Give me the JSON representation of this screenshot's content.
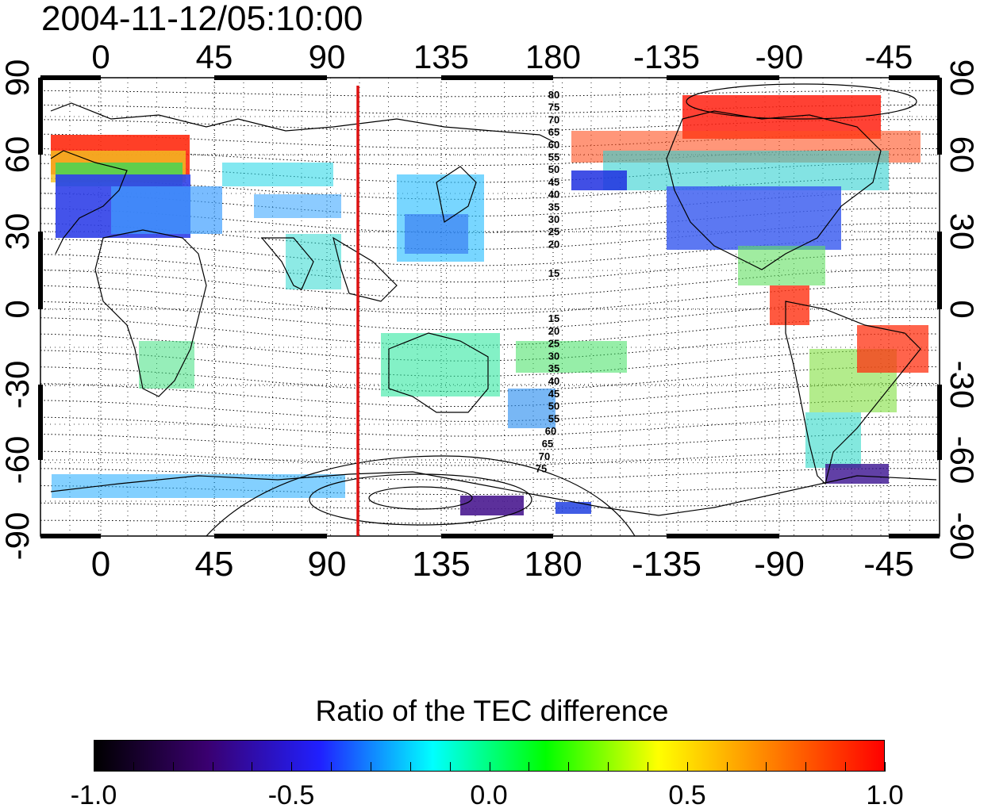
{
  "title": "2004-11-12/05:10:00",
  "map": {
    "top_axis_labels": [
      "0",
      "45",
      "90",
      "135",
      "180",
      "-135",
      "-90",
      "-45"
    ],
    "bottom_axis_labels": [
      "0",
      "45",
      "90",
      "135",
      "180",
      "-135",
      "-90",
      "-45"
    ],
    "left_axis_labels": [
      "90",
      "60",
      "30",
      "0",
      "-30",
      "-60",
      "-90"
    ],
    "right_axis_labels": [
      "90",
      "60",
      "30",
      "0",
      "-30",
      "-60",
      "-90"
    ],
    "contour_labels_north": [
      "80",
      "75",
      "70",
      "65",
      "60",
      "55",
      "50",
      "45",
      "40",
      "35",
      "30",
      "25",
      "20",
      "15"
    ],
    "contour_labels_south": [
      "15",
      "20",
      "25",
      "30",
      "35",
      "40",
      "45",
      "50",
      "55",
      "60",
      "65",
      "70",
      "75"
    ],
    "meridian_marker_color": "#dd1111",
    "meridian_marker_longitude": 103
  },
  "colorbar": {
    "title": "Ratio of the TEC difference",
    "tick_labels": [
      "-1.0",
      "-0.5",
      "0.0",
      "0.5",
      "1.0"
    ],
    "colors": [
      "#000000",
      "#3a0070",
      "#2020ff",
      "#00ffff",
      "#00ff00",
      "#ffff00",
      "#ff8000",
      "#ff0000"
    ]
  }
}
